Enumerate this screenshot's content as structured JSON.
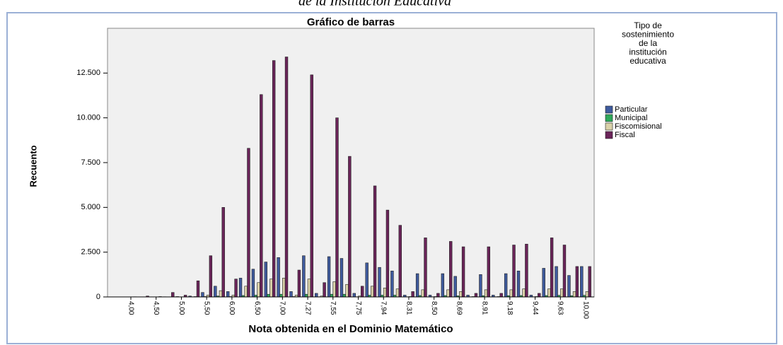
{
  "header_text": "de la Institución Educativa",
  "chart_data": {
    "type": "bar",
    "title": "Gráfico de barras",
    "x_label": "Nota obtenida en el Dominio Matemático",
    "y_label": "Recuento",
    "legend_title": [
      "Tipo de",
      "sostenimiento",
      "de la",
      "institución",
      "educativa"
    ],
    "legend_position": "right",
    "categories": [
      "4,00",
      null,
      "4,50",
      null,
      "5,00",
      null,
      "5,50",
      null,
      "6,00",
      null,
      "6,50",
      null,
      "7,00",
      null,
      "7,27",
      null,
      "7,55",
      null,
      "7,75",
      null,
      "7,94",
      null,
      "8,31",
      null,
      "8,50",
      null,
      "8,69",
      null,
      "8,91",
      null,
      "9,18",
      null,
      "9,44",
      null,
      "9,63",
      null,
      "10,00"
    ],
    "series": [
      {
        "name": "Particular",
        "color": "#3f5b9e",
        "values": [
          0,
          0,
          0,
          10,
          20,
          50,
          250,
          600,
          300,
          1050,
          1550,
          1950,
          2200,
          300,
          2300,
          200,
          2250,
          2150,
          200,
          1900,
          1650,
          1450,
          100,
          1300,
          100,
          1300,
          1150,
          100,
          1250,
          100,
          1300,
          1450,
          100,
          1600,
          1700,
          1200,
          1700
        ]
      },
      {
        "name": "Municipal",
        "color": "#2fa85a",
        "values": [
          0,
          0,
          0,
          5,
          5,
          10,
          20,
          50,
          20,
          80,
          100,
          150,
          150,
          20,
          150,
          10,
          150,
          150,
          10,
          100,
          100,
          100,
          10,
          80,
          10,
          80,
          60,
          10,
          70,
          10,
          70,
          80,
          10,
          80,
          90,
          70,
          90
        ]
      },
      {
        "name": "Fiscomisional",
        "color": "#d9d1a9",
        "values": [
          0,
          0,
          0,
          5,
          5,
          20,
          100,
          350,
          100,
          600,
          800,
          1000,
          1050,
          100,
          1000,
          50,
          850,
          700,
          50,
          600,
          500,
          450,
          20,
          400,
          20,
          400,
          300,
          20,
          400,
          20,
          400,
          450,
          20,
          450,
          450,
          300,
          300
        ]
      },
      {
        "name": "Fiscal",
        "color": "#6a2459",
        "values": [
          10,
          50,
          20,
          250,
          100,
          900,
          2300,
          5000,
          1000,
          8300,
          11300,
          13200,
          13400,
          1500,
          12400,
          800,
          10000,
          7850,
          600,
          6200,
          4850,
          4000,
          300,
          3300,
          200,
          3100,
          2800,
          200,
          2800,
          200,
          2900,
          2950,
          200,
          3300,
          2900,
          1700,
          1700
        ]
      }
    ],
    "ylim": [
      0,
      15000
    ],
    "yticks": [
      0,
      {
        "value": 2500,
        "label": "2.500"
      },
      {
        "value": 5000,
        "label": "5.000"
      },
      {
        "value": 7500,
        "label": "7.500"
      },
      {
        "value": 10000,
        "label": "10.000"
      },
      {
        "value": 12500,
        "label": "12.500"
      }
    ]
  }
}
